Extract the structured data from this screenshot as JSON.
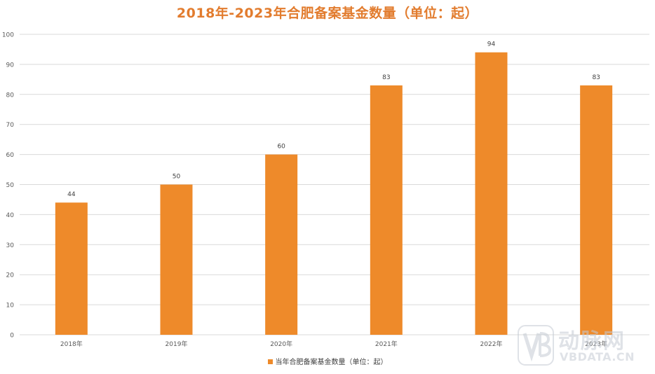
{
  "colors": {
    "title": "#E27C2E",
    "bar": "#EE8A2A",
    "grid": "#D9D9D9",
    "axis_text": "#595959",
    "label_text": "#404040",
    "watermark": "#C5CBD4"
  },
  "watermark": {
    "brand_cn": "动脉网",
    "brand_en": "VBDATA.CN",
    "icon": "vb-logo-icon"
  },
  "chart_data": {
    "type": "bar",
    "title": "2018年-2023年合肥备案基金数量（单位：起）",
    "categories": [
      "2018年",
      "2019年",
      "2020年",
      "2021年",
      "2022年",
      "2023年"
    ],
    "series": [
      {
        "name": "当年合肥备案基金数量（单位：起）",
        "values": [
          44,
          50,
          60,
          83,
          94,
          83
        ]
      }
    ],
    "ylim": [
      0,
      100
    ],
    "yticks": [
      0,
      10,
      20,
      30,
      40,
      50,
      60,
      70,
      80,
      90,
      100
    ],
    "grid": true,
    "legend": "bottom",
    "data_labels": true
  }
}
